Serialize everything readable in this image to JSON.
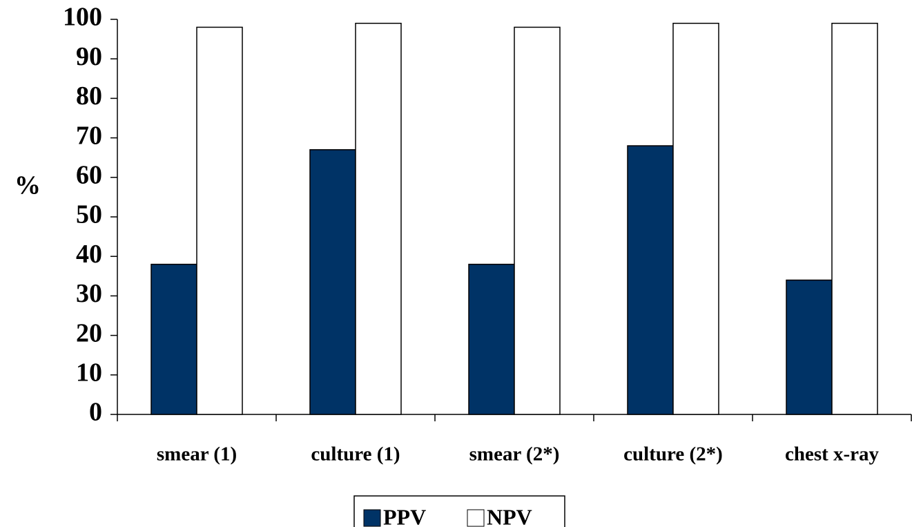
{
  "chart_data": {
    "type": "bar",
    "y_label": "%",
    "categories": [
      "smear (1)",
      "culture (1)",
      "smear (2*)",
      "culture (2*)",
      "chest x-ray"
    ],
    "series": [
      {
        "name": "PPV",
        "color": "#003366",
        "values": [
          38,
          67,
          38,
          68,
          34
        ]
      },
      {
        "name": "NPV",
        "color": "#ffffff",
        "values": [
          98,
          99,
          98,
          99,
          99
        ]
      }
    ],
    "ylim": [
      0,
      100
    ],
    "yticks": [
      0,
      10,
      20,
      30,
      40,
      50,
      60,
      70,
      80,
      90,
      100
    ],
    "grid": false
  }
}
